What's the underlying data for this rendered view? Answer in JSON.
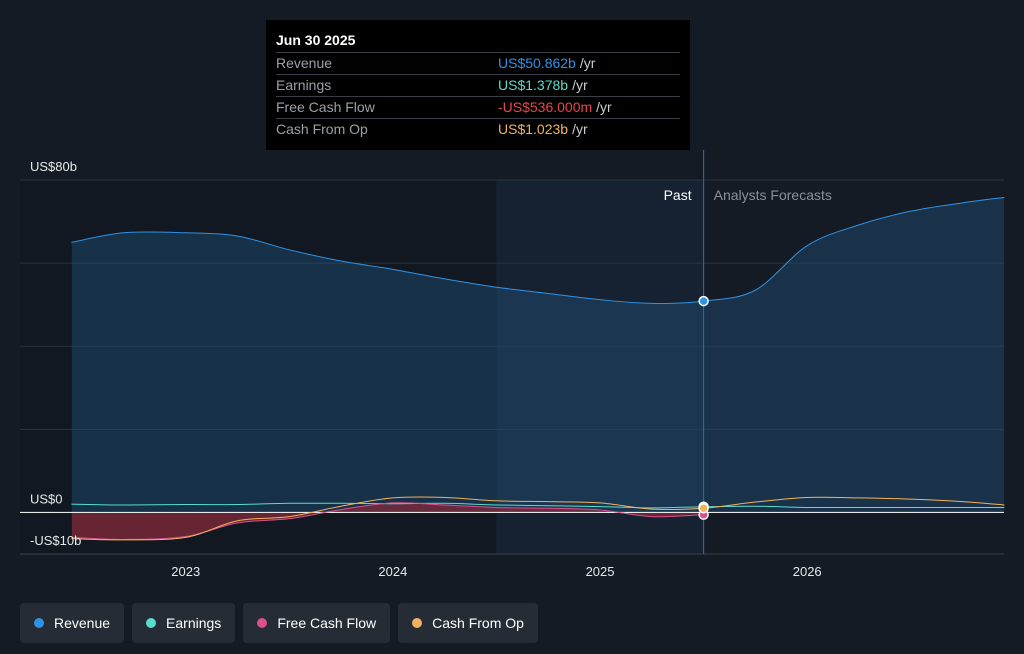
{
  "tooltip": {
    "date": "Jun 30 2025",
    "rows": [
      {
        "label": "Revenue",
        "value": "US$50.862b",
        "unit": "/yr",
        "color": "#2e93e5"
      },
      {
        "label": "Earnings",
        "value": "US$1.378b",
        "unit": "/yr",
        "color": "#59dccb"
      },
      {
        "label": "Free Cash Flow",
        "value": "-US$536.000m",
        "unit": "/yr",
        "color": "#e8484c"
      },
      {
        "label": "Cash From Op",
        "value": "US$1.023b",
        "unit": "/yr",
        "color": "#f1b25e"
      }
    ]
  },
  "legend": [
    {
      "label": "Revenue",
      "color": "#2e93e5"
    },
    {
      "label": "Earnings",
      "color": "#59dccb"
    },
    {
      "label": "Free Cash Flow",
      "color": "#d9508c"
    },
    {
      "label": "Cash From Op",
      "color": "#f1b25e"
    }
  ],
  "chart_data": {
    "type": "line",
    "y_axis_labels": [
      "US$80b",
      "US$0",
      "-US$10b"
    ],
    "x_tick_labels": [
      "2023",
      "2024",
      "2025",
      "2026"
    ],
    "past_label": "Past",
    "forecast_label": "Analysts Forecasts",
    "ylim": [
      -10,
      80
    ],
    "x_range": [
      2022.2,
      2026.95
    ],
    "divider_x": 2025.5,
    "highlight_band": [
      2024.5,
      2025.5
    ],
    "series": [
      {
        "name": "Revenue",
        "color": "#2e93e5",
        "area": true,
        "x": [
          2022.45,
          2022.7,
          2023.0,
          2023.25,
          2023.5,
          2023.75,
          2024.0,
          2024.25,
          2024.5,
          2024.75,
          2025.0,
          2025.25,
          2025.5,
          2025.75,
          2026.0,
          2026.25,
          2026.5,
          2026.75,
          2026.95
        ],
        "y": [
          65,
          67.3,
          67.3,
          66.5,
          63.2,
          60.5,
          58.5,
          56.2,
          54.2,
          52.7,
          51.2,
          50.3,
          50.86,
          53.5,
          64.2,
          69.2,
          72.5,
          74.5,
          75.8
        ]
      },
      {
        "name": "Earnings",
        "color": "#59dccb",
        "x": [
          2022.45,
          2022.7,
          2023.0,
          2023.25,
          2023.5,
          2023.75,
          2024.0,
          2024.25,
          2024.5,
          2024.75,
          2025.0,
          2025.25,
          2025.5,
          2025.75,
          2026.0,
          2026.25,
          2026.5,
          2026.75,
          2026.95
        ],
        "y": [
          2.0,
          1.8,
          1.9,
          1.9,
          2.2,
          2.2,
          2.1,
          2.2,
          1.8,
          1.6,
          1.4,
          1.1,
          1.378,
          1.5,
          1.2,
          1.2,
          1.2,
          1.2,
          1.2
        ]
      },
      {
        "name": "Free Cash Flow",
        "color": "#d9508c",
        "area": true,
        "x": [
          2022.45,
          2022.7,
          2023.0,
          2023.25,
          2023.5,
          2023.75,
          2024.0,
          2024.25,
          2024.5,
          2024.75,
          2025.0,
          2025.25,
          2025.5
        ],
        "y": [
          -6.0,
          -6.5,
          -5.8,
          -2.5,
          -1.5,
          0.7,
          2.3,
          1.8,
          1.2,
          1.0,
          0.6,
          -1.0,
          -0.536
        ]
      },
      {
        "name": "Cash From Op",
        "color": "#f1b25e",
        "x": [
          2022.45,
          2022.7,
          2023.0,
          2023.25,
          2023.5,
          2023.75,
          2024.0,
          2024.25,
          2024.5,
          2024.75,
          2025.0,
          2025.25,
          2025.5,
          2025.75,
          2026.0,
          2026.25,
          2026.5,
          2026.75,
          2026.95
        ],
        "y": [
          -6.3,
          -6.6,
          -6.0,
          -2.0,
          -1.0,
          1.5,
          3.5,
          3.6,
          2.8,
          2.6,
          2.3,
          0.8,
          1.023,
          2.5,
          3.6,
          3.5,
          3.2,
          2.6,
          1.8
        ]
      }
    ]
  }
}
